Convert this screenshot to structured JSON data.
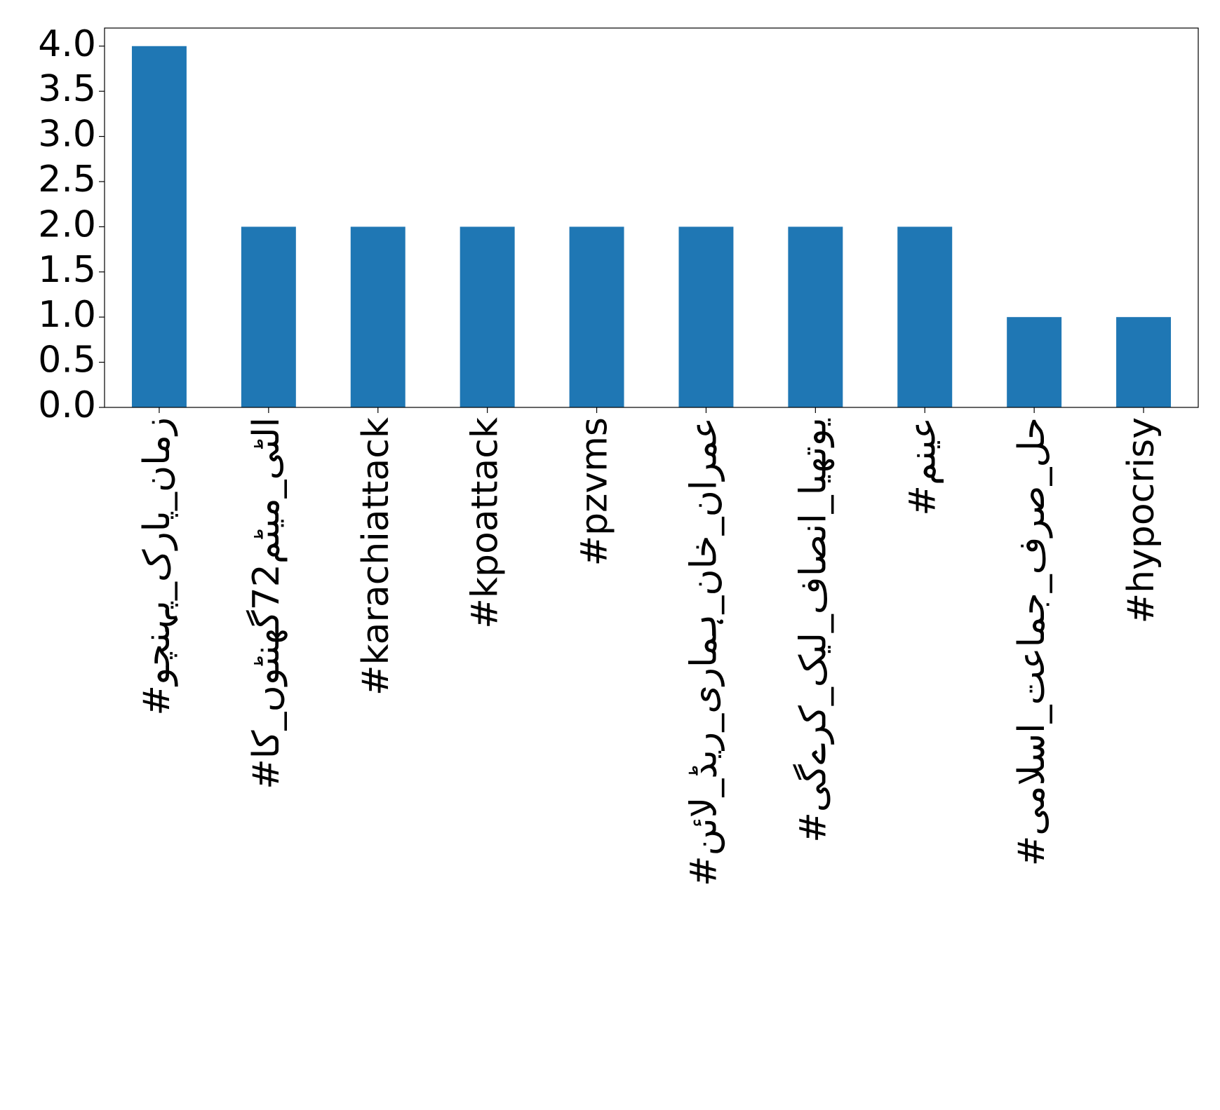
{
  "chart_data": {
    "type": "bar",
    "categories": [
      "#زمان_پارک_پہنچو",
      "#الٹی_میٹم72گھنٹوں_کا",
      "#karachiattack",
      "#kpoattack",
      "#pzvms",
      "#عمران_خان_ہماری_ریڈ_لائن",
      "#یوتھیا_انصاف_لیک_کرےگی",
      "#عینم",
      "#حل_صرف_جماعت_اسلامی",
      "#hypocrisy"
    ],
    "values": [
      4,
      2,
      2,
      2,
      2,
      2,
      2,
      2,
      1,
      1
    ],
    "color": "#1f77b4",
    "ylim": [
      0,
      4.2
    ],
    "yticks": [
      {
        "value": 0,
        "label": "0.0"
      },
      {
        "value": 0.5,
        "label": "0.5"
      },
      {
        "value": 1,
        "label": "1.0"
      },
      {
        "value": 1.5,
        "label": "1.5"
      },
      {
        "value": 2,
        "label": "2.0"
      },
      {
        "value": 2.5,
        "label": "2.5"
      },
      {
        "value": 3,
        "label": "3.0"
      },
      {
        "value": 3.5,
        "label": "3.5"
      },
      {
        "value": 4,
        "label": "4.0"
      }
    ],
    "grid": false
  }
}
